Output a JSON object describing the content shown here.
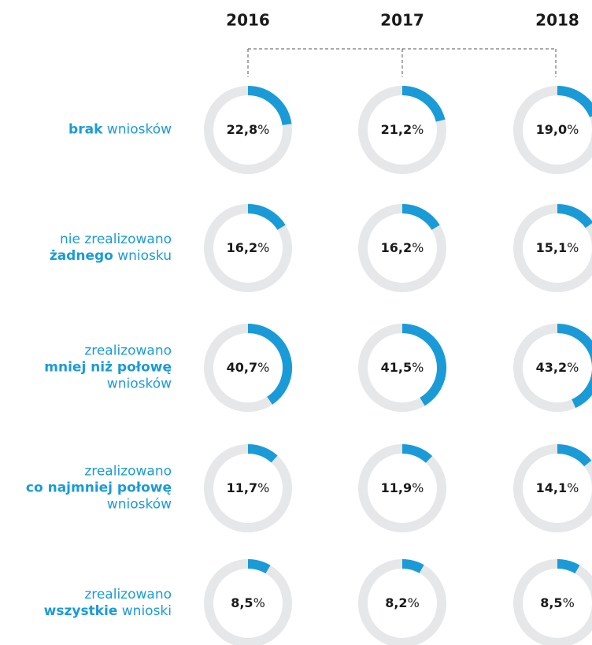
{
  "chart_data": {
    "type": "donut",
    "categories": [
      "2016",
      "2017",
      "2018"
    ],
    "ylim": [
      0,
      100
    ],
    "color": "#1a9bd7",
    "track_color": "#e6e7e8",
    "rows": [
      {
        "label": [
          [
            {
              "text": "brak",
              "bold": true
            },
            {
              "text": "wniosków"
            }
          ]
        ],
        "values": [
          22.8,
          21.2,
          19.0
        ],
        "value_labels": [
          "22,8%",
          "21,2%",
          "19,0%"
        ]
      },
      {
        "label": [
          [
            {
              "text": "nie zrealizowano"
            }
          ],
          [
            {
              "text": "żadnego",
              "bold": true
            },
            {
              "text": "wniosku"
            }
          ]
        ],
        "values": [
          16.2,
          16.2,
          15.1
        ],
        "value_labels": [
          "16,2%",
          "16,2%",
          "15,1%"
        ]
      },
      {
        "label": [
          [
            {
              "text": "zrealizowano"
            }
          ],
          [
            {
              "text": "mniej niż połowę",
              "bold": true
            }
          ],
          [
            {
              "text": "wniosków"
            }
          ]
        ],
        "values": [
          40.7,
          41.5,
          43.2
        ],
        "value_labels": [
          "40,7%",
          "41,5%",
          "43,2%"
        ]
      },
      {
        "label": [
          [
            {
              "text": "zrealizowano"
            }
          ],
          [
            {
              "text": "co najmniej połowę",
              "bold": true
            }
          ],
          [
            {
              "text": "wniosków"
            }
          ]
        ],
        "values": [
          11.7,
          11.9,
          14.1
        ],
        "value_labels": [
          "11,7%",
          "11,9%",
          "14,1%"
        ]
      },
      {
        "label": [
          [
            {
              "text": "zrealizowano"
            }
          ],
          [
            {
              "text": "wszystkie",
              "bold": true
            },
            {
              "text": "wnioski"
            }
          ]
        ],
        "values": [
          8.5,
          8.2,
          8.5
        ],
        "value_labels": [
          "8,5%",
          "8,2%",
          "8,5%"
        ]
      }
    ]
  }
}
